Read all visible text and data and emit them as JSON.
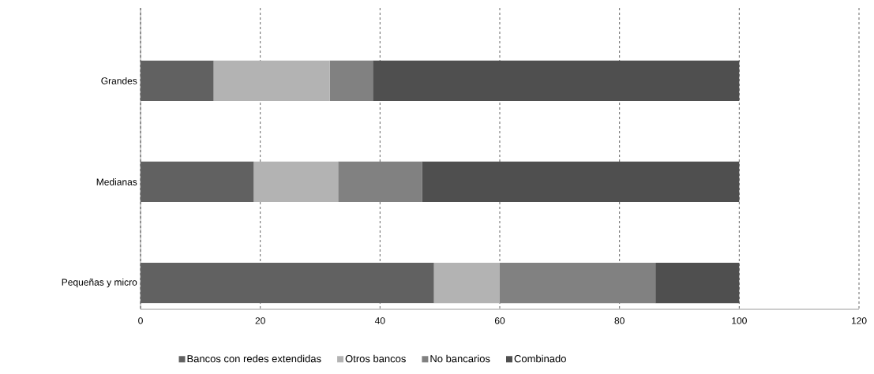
{
  "chart_data": {
    "type": "bar",
    "orientation": "horizontal",
    "stacked": true,
    "categories": [
      "Grandes",
      "Medianas",
      "Pequeñas y micro"
    ],
    "series": [
      {
        "name": "Bancos con redes extendidas",
        "color": "#616161",
        "values": [
          12.2,
          18.9,
          49.0
        ]
      },
      {
        "name": "Otros bancos",
        "color": "#b3b3b3",
        "values": [
          19.4,
          14.1,
          11.0
        ]
      },
      {
        "name": "No bancarios",
        "color": "#818181",
        "values": [
          7.2,
          14.0,
          26.0
        ]
      },
      {
        "name": "Combinado",
        "color": "#4f4f4f",
        "values": [
          61.2,
          53.0,
          14.0
        ]
      }
    ],
    "xlim": [
      0,
      120
    ],
    "xticks": [
      0,
      20,
      40,
      60,
      80,
      100,
      120
    ],
    "grid": "x",
    "legend": "bottom"
  }
}
